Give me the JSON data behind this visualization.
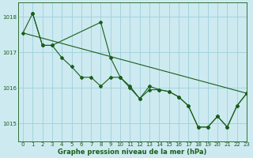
{
  "background_color": "#cdeaf0",
  "grid_color": "#9ecfdb",
  "line_color": "#1a5e1a",
  "title": "Graphe pression niveau de la mer (hPa)",
  "xlim": [
    -0.5,
    23
  ],
  "ylim": [
    1014.5,
    1018.4
  ],
  "yticks": [
    1015,
    1016,
    1017,
    1018
  ],
  "xticks": [
    0,
    1,
    2,
    3,
    4,
    5,
    6,
    7,
    8,
    9,
    10,
    11,
    12,
    13,
    14,
    15,
    16,
    17,
    18,
    19,
    20,
    21,
    22,
    23
  ],
  "series": [
    {
      "x": [
        0,
        1,
        2,
        3,
        4,
        5,
        6,
        7,
        8,
        9,
        10,
        11,
        12,
        13,
        14,
        15,
        16,
        17,
        18,
        19,
        20,
        21,
        22,
        23
      ],
      "y": [
        1017.55,
        1018.1,
        1017.2,
        1017.2,
        1016.85,
        1016.6,
        1016.3,
        1016.3,
        1016.05,
        1016.3,
        1016.3,
        1016.0,
        1015.7,
        1016.05,
        1015.95,
        1015.9,
        1015.75,
        1015.5,
        1014.9,
        1014.9,
        1015.2,
        1014.9,
        1015.5,
        1015.85
      ],
      "marker": true
    },
    {
      "x": [
        0,
        23
      ],
      "y": [
        1017.55,
        1015.85
      ],
      "marker": false
    },
    {
      "x": [
        1,
        2,
        3,
        8,
        9,
        10,
        11,
        12,
        13,
        14,
        15,
        16,
        17,
        18,
        19,
        20,
        21,
        22,
        23
      ],
      "y": [
        1018.1,
        1017.2,
        1017.2,
        1017.85,
        1016.85,
        1016.3,
        1016.05,
        1015.7,
        1015.95,
        1015.95,
        1015.9,
        1015.75,
        1015.5,
        1014.9,
        1014.9,
        1015.2,
        1014.9,
        1015.5,
        1015.85
      ],
      "marker": true
    }
  ],
  "title_fontsize": 6.0,
  "tick_fontsize": 5.0
}
